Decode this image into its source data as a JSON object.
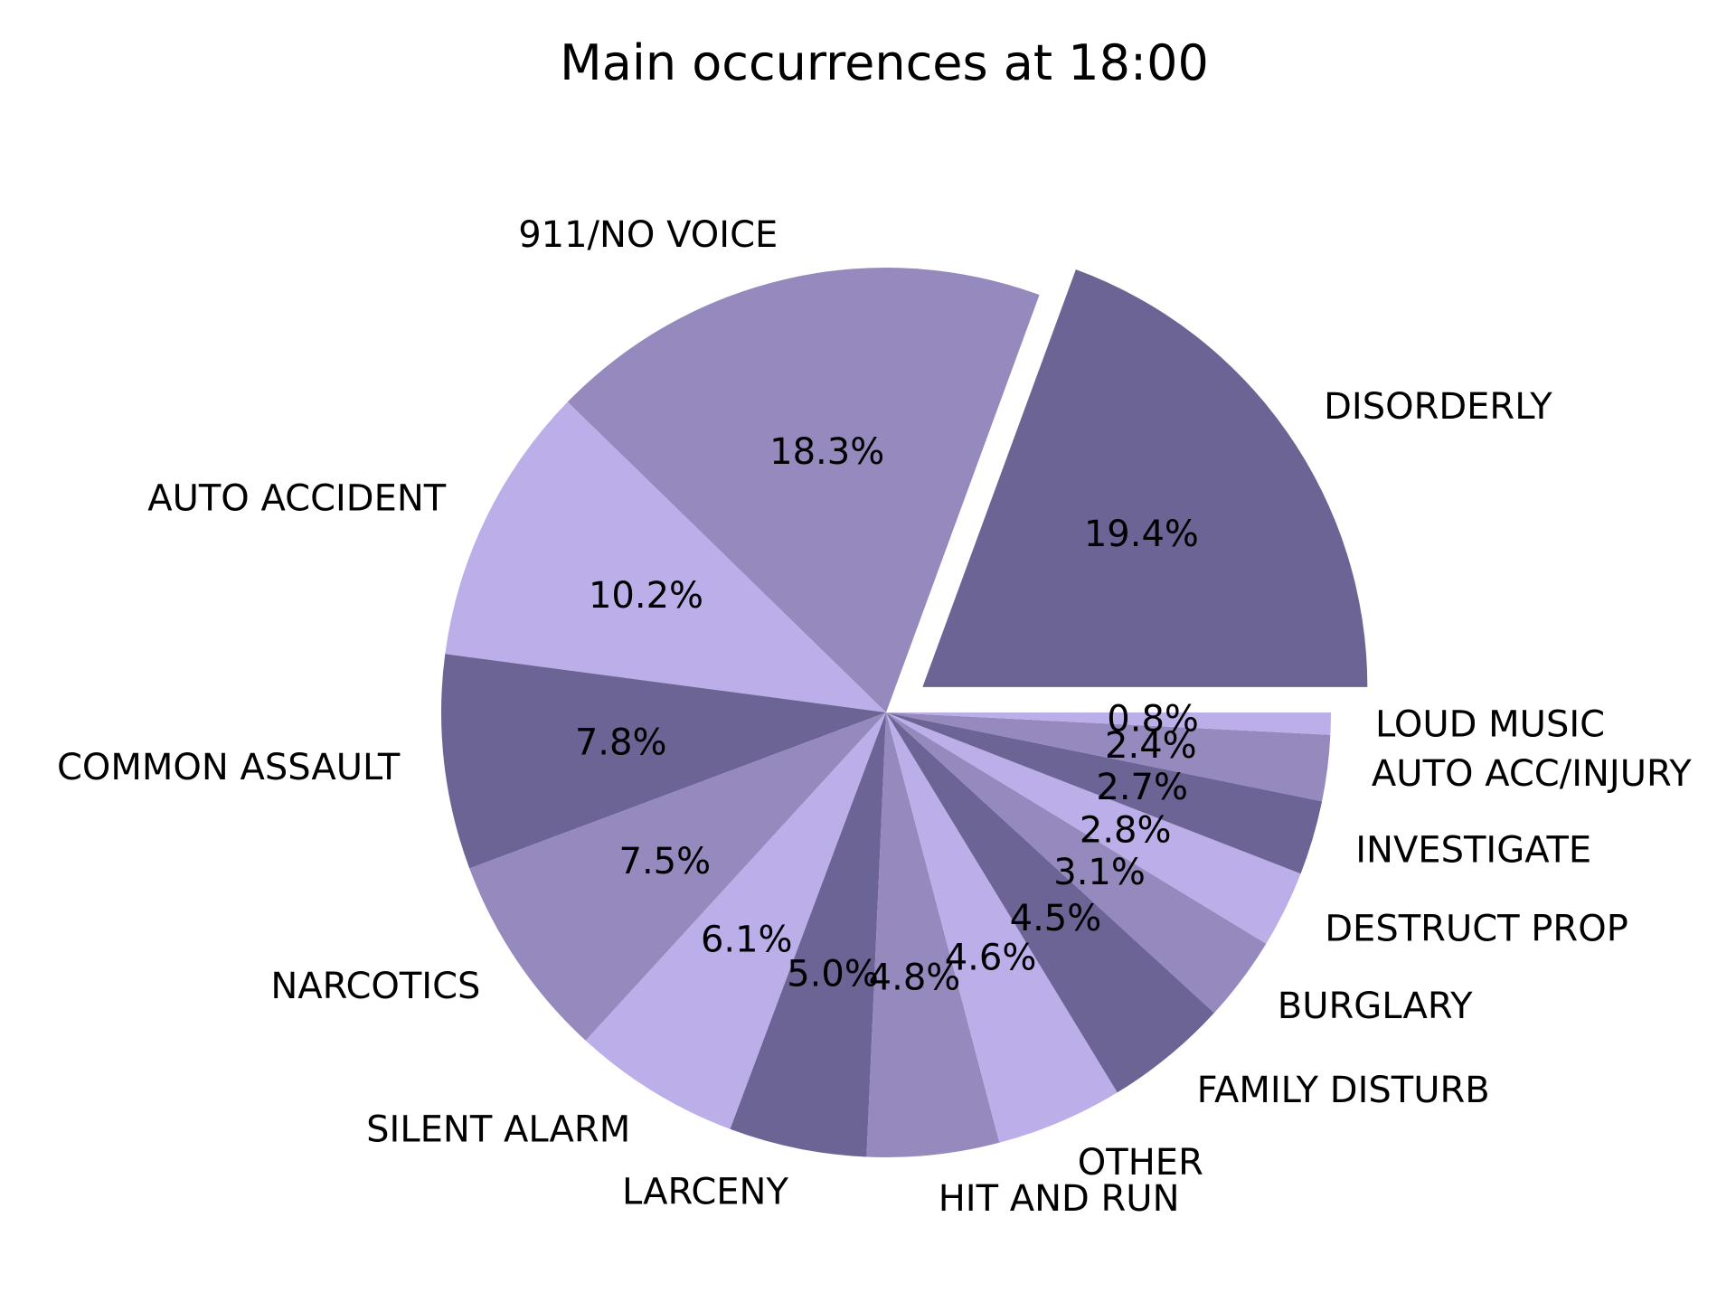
{
  "chart_data": {
    "type": "pie",
    "title": "Main occurrences at 18:00",
    "start_angle_deg": 0,
    "direction": "counterclockwise",
    "exploded": [
      "DISORDERLY"
    ],
    "colors": [
      "#6b6495",
      "#9589bd",
      "#bcaee8"
    ],
    "slices": [
      {
        "label": "DISORDERLY",
        "pct_text": "19.4%",
        "value": 19.4
      },
      {
        "label": "911/NO  VOICE",
        "pct_text": "18.3%",
        "value": 18.3
      },
      {
        "label": "AUTO ACCIDENT",
        "pct_text": "10.2%",
        "value": 10.2
      },
      {
        "label": "COMMON ASSAULT",
        "pct_text": "7.8%",
        "value": 7.8
      },
      {
        "label": "NARCOTICS",
        "pct_text": "7.5%",
        "value": 7.5
      },
      {
        "label": "SILENT ALARM",
        "pct_text": "6.1%",
        "value": 6.1
      },
      {
        "label": "LARCENY",
        "pct_text": "5.0%",
        "value": 5.0
      },
      {
        "label": "HIT AND RUN",
        "pct_text": "4.8%",
        "value": 4.8
      },
      {
        "label": "OTHER",
        "pct_text": "4.6%",
        "value": 4.6
      },
      {
        "label": "FAMILY DISTURB",
        "pct_text": "4.5%",
        "value": 4.5
      },
      {
        "label": "BURGLARY",
        "pct_text": "3.1%",
        "value": 3.1
      },
      {
        "label": "DESTRUCT PROP",
        "pct_text": "2.8%",
        "value": 2.8
      },
      {
        "label": "INVESTIGATE",
        "pct_text": "2.7%",
        "value": 2.7
      },
      {
        "label": "AUTO ACC/INJURY",
        "pct_text": "2.4%",
        "value": 2.4
      },
      {
        "label": "LOUD MUSIC",
        "pct_text": "0.8%",
        "value": 0.8
      }
    ]
  }
}
